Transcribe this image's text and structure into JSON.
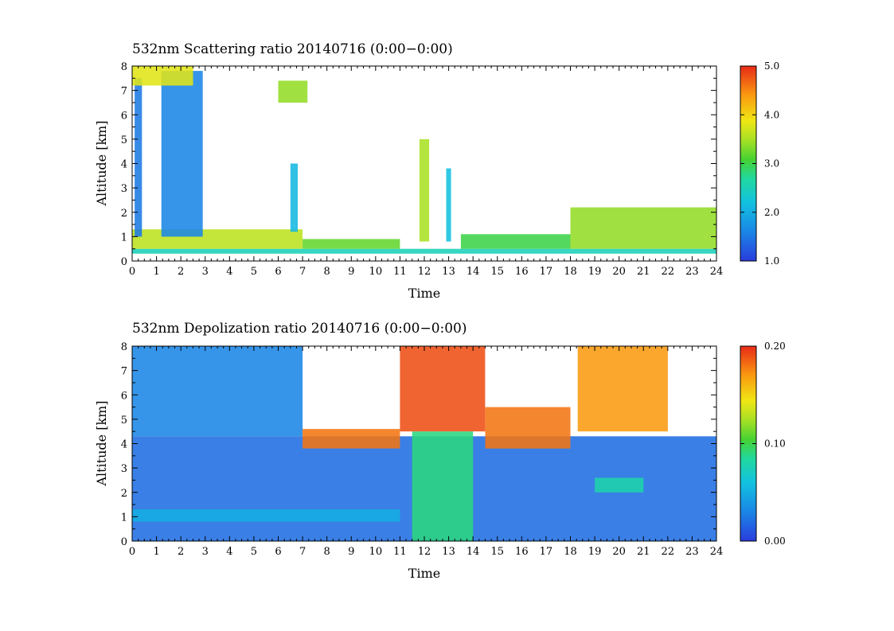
{
  "chart_data": [
    {
      "type": "heatmap",
      "title": "532nm Scattering ratio  20140716 (0:00−0:00)",
      "xlabel": "Time",
      "ylabel": "Altitude [km]",
      "xlim": [
        0,
        24
      ],
      "ylim": [
        0,
        8
      ],
      "x_ticks": [
        "0",
        "1",
        "2",
        "3",
        "4",
        "5",
        "6",
        "7",
        "8",
        "9",
        "10",
        "11",
        "12",
        "13",
        "14",
        "15",
        "16",
        "17",
        "18",
        "19",
        "20",
        "21",
        "22",
        "23",
        "24"
      ],
      "y_ticks": [
        "0",
        "1",
        "2",
        "3",
        "4",
        "5",
        "6",
        "7",
        "8"
      ],
      "colorbar": {
        "range": [
          1.0,
          5.0
        ],
        "ticks": [
          "1.0",
          "2.0",
          "3.0",
          "4.0",
          "5.0"
        ]
      },
      "features": [
        {
          "x": [
            0,
            24
          ],
          "y": [
            0.3,
            0.5
          ],
          "value": 2.5
        },
        {
          "x": [
            0,
            7
          ],
          "y": [
            0.5,
            1.3
          ],
          "value": 3.6
        },
        {
          "x": [
            7,
            11
          ],
          "y": [
            0.5,
            0.9
          ],
          "value": 3.2
        },
        {
          "x": [
            13.5,
            18
          ],
          "y": [
            0.5,
            1.1
          ],
          "value": 3.0
        },
        {
          "x": [
            18,
            24
          ],
          "y": [
            0.5,
            2.2
          ],
          "value": 3.4
        },
        {
          "x": [
            1.2,
            2.9
          ],
          "y": [
            1.0,
            7.8
          ],
          "value": 1.6
        },
        {
          "x": [
            11.8,
            12.2
          ],
          "y": [
            0.8,
            5.0
          ],
          "value": 3.5
        },
        {
          "x": [
            12.9,
            13.1
          ],
          "y": [
            0.8,
            3.8
          ],
          "value": 2.2
        },
        {
          "x": [
            6.5,
            6.8
          ],
          "y": [
            1.2,
            4.0
          ],
          "value": 2.1
        },
        {
          "x": [
            0.1,
            0.4
          ],
          "y": [
            1.0,
            7.5
          ],
          "value": 1.5
        },
        {
          "x": [
            6.0,
            7.2
          ],
          "y": [
            6.5,
            7.4
          ],
          "value": 3.4
        },
        {
          "x": [
            0,
            2.5
          ],
          "y": [
            7.2,
            8.0
          ],
          "value": 3.8
        }
      ]
    },
    {
      "type": "heatmap",
      "title": "532nm Depolization ratio  20140716 (0:00−0:00)",
      "xlabel": "Time",
      "ylabel": "Altitude [km]",
      "xlim": [
        0,
        24
      ],
      "ylim": [
        0,
        8
      ],
      "x_ticks": [
        "0",
        "1",
        "2",
        "3",
        "4",
        "5",
        "6",
        "7",
        "8",
        "9",
        "10",
        "11",
        "12",
        "13",
        "14",
        "15",
        "16",
        "17",
        "18",
        "19",
        "20",
        "21",
        "22",
        "23",
        "24"
      ],
      "y_ticks": [
        "0",
        "1",
        "2",
        "3",
        "4",
        "5",
        "6",
        "7",
        "8"
      ],
      "colorbar": {
        "range": [
          0.0,
          0.2
        ],
        "ticks": [
          "0.00",
          "0.10",
          "0.20"
        ]
      },
      "features": [
        {
          "x": [
            0,
            24
          ],
          "y": [
            0,
            4.3
          ],
          "value": 0.02
        },
        {
          "x": [
            0,
            7
          ],
          "y": [
            4.3,
            8.0
          ],
          "value": 0.03
        },
        {
          "x": [
            0,
            11
          ],
          "y": [
            0.8,
            1.3
          ],
          "value": 0.05
        },
        {
          "x": [
            11.5,
            14
          ],
          "y": [
            0,
            4.5
          ],
          "value": 0.09
        },
        {
          "x": [
            7,
            11
          ],
          "y": [
            3.8,
            4.6
          ],
          "value": 0.18
        },
        {
          "x": [
            11,
            14.5
          ],
          "y": [
            4.5,
            8.0
          ],
          "value": 0.19
        },
        {
          "x": [
            14.5,
            18
          ],
          "y": [
            3.8,
            5.5
          ],
          "value": 0.18
        },
        {
          "x": [
            18.3,
            22
          ],
          "y": [
            4.5,
            8.0
          ],
          "value": 0.17
        },
        {
          "x": [
            19,
            21
          ],
          "y": [
            2.0,
            2.6
          ],
          "value": 0.08
        }
      ]
    }
  ]
}
